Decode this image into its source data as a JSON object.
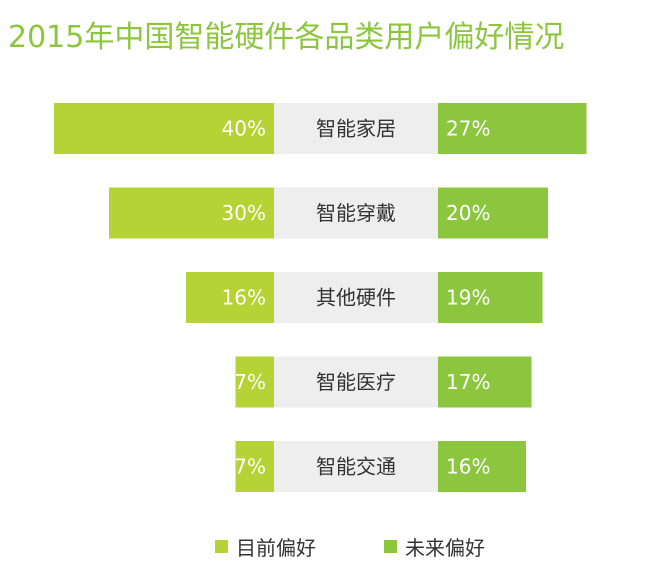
{
  "title": "2015年中国智能硬件各品类用户偏好情况",
  "colors": {
    "current": "#b5d334",
    "future": "#8cc63f",
    "category_bg": "#eeeeee",
    "label_text": "#ffffff",
    "category_text": "#333333",
    "title": "#8cc63f"
  },
  "legend": {
    "current": "目前偏好",
    "future": "未来偏好"
  },
  "chart_data": {
    "type": "bar",
    "layout": "butterfly",
    "categories": [
      "智能家居",
      "智能穿戴",
      "其他硬件",
      "智能医疗",
      "智能交通"
    ],
    "series": [
      {
        "name": "目前偏好",
        "values": [
          40,
          30,
          16,
          7,
          7
        ],
        "labels": [
          "40%",
          "30%",
          "16%",
          "7%",
          "7%"
        ]
      },
      {
        "name": "未来偏好",
        "values": [
          27,
          20,
          19,
          17,
          16
        ],
        "labels": [
          "27%",
          "20%",
          "19%",
          "17%",
          "16%"
        ]
      }
    ],
    "unit": "%",
    "grid": false,
    "legend_position": "bottom"
  }
}
